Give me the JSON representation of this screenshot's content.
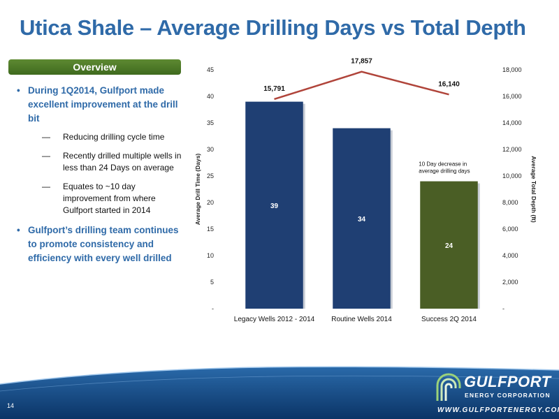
{
  "slide": {
    "title": "Utica Shale – Average Drilling Days vs Total Depth",
    "page_number": "14"
  },
  "overview": {
    "header": "Overview",
    "bullets": [
      {
        "text": "During 1Q2014, Gulfport made excellent improvement at the drill bit",
        "sub": [
          "Reducing drilling cycle time",
          "Recently drilled multiple wells in less than 24 Days on average",
          "Equates to ~10 day improvement from where Gulfport started in 2014"
        ]
      },
      {
        "text": "Gulfport’s drilling team continues to promote consistency and efficiency with every well drilled",
        "sub": []
      }
    ],
    "bullet_glyph": "•",
    "sub_glyph": "—"
  },
  "chart_data": {
    "type": "bar",
    "categories": [
      "Legacy Wells 2012 - 2014",
      "Routine Wells 2014",
      "Success 2Q 2014"
    ],
    "series": [
      {
        "type": "bar",
        "axis": "left",
        "values": [
          39,
          34,
          24
        ],
        "colors": [
          "#1f3f73",
          "#1f3f73",
          "#4a5e25"
        ],
        "labels": [
          "39",
          "34",
          "24"
        ]
      },
      {
        "type": "line",
        "axis": "right",
        "values": [
          15791,
          17857,
          16140
        ],
        "color": "#b0443a",
        "labels": [
          "15,791",
          "17,857",
          "16,140"
        ]
      }
    ],
    "ylabel": "Average Drill Time (Days)",
    "y2label": "Average Total Depth (ft)",
    "ylim": [
      0,
      45
    ],
    "y2lim": [
      0,
      18000
    ],
    "yticks": [
      "-",
      "5",
      "10",
      "15",
      "20",
      "25",
      "30",
      "35",
      "40",
      "45"
    ],
    "y2ticks": [
      "-",
      "2,000",
      "4,000",
      "6,000",
      "8,000",
      "10,000",
      "12,000",
      "14,000",
      "16,000",
      "18,000"
    ],
    "annotation": {
      "lines": [
        "10 Day decrease in",
        "average drilling days"
      ]
    },
    "grid": false
  },
  "logo": {
    "name": "GULFPORT",
    "sub": "ENERGY CORPORATION",
    "url": "WWW.GULFPORTENERGY.COM"
  },
  "colors": {
    "title": "#2f6aa8",
    "overview_green": "#4e7a28",
    "footer_blue": "#0d3f78"
  }
}
